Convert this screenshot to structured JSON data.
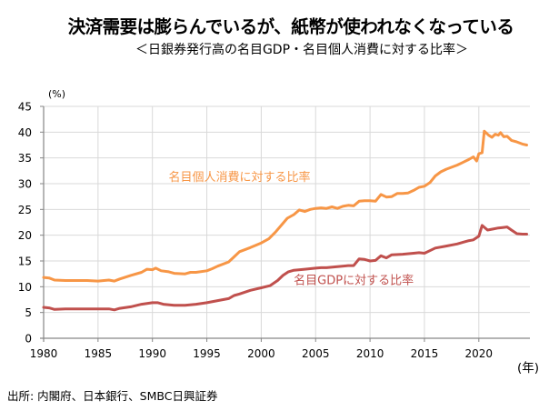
{
  "header": {
    "title": "決済需要は膨らんでいるが、紙幣が使われなくなっている",
    "subtitle": "＜日銀券発行高の名目GDP・名目個人消費に対する比率＞"
  },
  "source": "出所: 内閣府、日本銀行、SMBC日興証券",
  "chart_data": {
    "type": "line",
    "title": "決済需要は膨らんでいるが、紙幣が使われなくなっている",
    "subtitle": "＜日銀券発行高の名目GDP・名目個人消費に対する比率＞",
    "xlabel": "(年)",
    "ylabel": "(%)",
    "xlim": [
      1980,
      2024.5
    ],
    "ylim": [
      0,
      45
    ],
    "yticks": [
      0,
      5,
      10,
      15,
      20,
      25,
      30,
      35,
      40,
      45
    ],
    "xticks": [
      1980,
      1985,
      1990,
      1995,
      2000,
      2005,
      2010,
      2015,
      2020
    ],
    "grid": true,
    "legend": "inline-labels",
    "colors": {
      "consumption": "#f79646",
      "gdp": "#c0504d",
      "grid": "#d9d9d9",
      "axis": "#868686"
    },
    "series": [
      {
        "name": "名目個人消費に対する比率",
        "key": "consumption",
        "label_near": [
          1998,
          30.5
        ],
        "points": [
          [
            1980.0,
            11.8
          ],
          [
            1980.5,
            11.7
          ],
          [
            1981.0,
            11.3
          ],
          [
            1982.0,
            11.2
          ],
          [
            1983.0,
            11.2
          ],
          [
            1984.0,
            11.2
          ],
          [
            1985.0,
            11.1
          ],
          [
            1986.0,
            11.3
          ],
          [
            1986.5,
            11.1
          ],
          [
            1987.0,
            11.5
          ],
          [
            1988.0,
            12.2
          ],
          [
            1989.0,
            12.8
          ],
          [
            1989.5,
            13.4
          ],
          [
            1990.0,
            13.3
          ],
          [
            1990.3,
            13.6
          ],
          [
            1990.8,
            13.1
          ],
          [
            1991.5,
            12.9
          ],
          [
            1992.0,
            12.6
          ],
          [
            1993.0,
            12.5
          ],
          [
            1993.5,
            12.8
          ],
          [
            1994.0,
            12.8
          ],
          [
            1995.0,
            13.1
          ],
          [
            1995.5,
            13.5
          ],
          [
            1996.0,
            14.0
          ],
          [
            1997.0,
            14.8
          ],
          [
            1997.5,
            15.8
          ],
          [
            1998.0,
            16.8
          ],
          [
            1999.0,
            17.6
          ],
          [
            2000.0,
            18.5
          ],
          [
            2000.7,
            19.3
          ],
          [
            2001.3,
            20.6
          ],
          [
            2002.0,
            22.3
          ],
          [
            2002.4,
            23.3
          ],
          [
            2003.0,
            24.0
          ],
          [
            2003.5,
            24.9
          ],
          [
            2004.0,
            24.6
          ],
          [
            2004.5,
            25.0
          ],
          [
            2005.0,
            25.2
          ],
          [
            2005.5,
            25.3
          ],
          [
            2006.0,
            25.2
          ],
          [
            2006.5,
            25.5
          ],
          [
            2007.0,
            25.2
          ],
          [
            2007.5,
            25.6
          ],
          [
            2008.0,
            25.8
          ],
          [
            2008.5,
            25.7
          ],
          [
            2009.0,
            26.6
          ],
          [
            2009.5,
            26.7
          ],
          [
            2010.0,
            26.7
          ],
          [
            2010.5,
            26.6
          ],
          [
            2011.0,
            27.9
          ],
          [
            2011.5,
            27.4
          ],
          [
            2012.0,
            27.5
          ],
          [
            2012.5,
            28.1
          ],
          [
            2013.0,
            28.1
          ],
          [
            2013.5,
            28.2
          ],
          [
            2014.0,
            28.7
          ],
          [
            2014.5,
            29.3
          ],
          [
            2015.0,
            29.5
          ],
          [
            2015.5,
            30.2
          ],
          [
            2016.0,
            31.5
          ],
          [
            2016.5,
            32.3
          ],
          [
            2017.0,
            32.8
          ],
          [
            2017.5,
            33.2
          ],
          [
            2018.0,
            33.6
          ],
          [
            2018.5,
            34.1
          ],
          [
            2019.0,
            34.6
          ],
          [
            2019.5,
            35.2
          ],
          [
            2019.8,
            34.4
          ],
          [
            2020.0,
            35.8
          ],
          [
            2020.3,
            36.0
          ],
          [
            2020.5,
            40.2
          ],
          [
            2020.9,
            39.4
          ],
          [
            2021.2,
            39.0
          ],
          [
            2021.5,
            39.6
          ],
          [
            2021.8,
            39.4
          ],
          [
            2022.0,
            39.9
          ],
          [
            2022.3,
            39.1
          ],
          [
            2022.6,
            39.2
          ],
          [
            2023.0,
            38.4
          ],
          [
            2023.5,
            38.1
          ],
          [
            2024.0,
            37.7
          ],
          [
            2024.4,
            37.5
          ]
        ]
      },
      {
        "name": "名目GDPに対する比率",
        "key": "gdp",
        "label_near": [
          2008.5,
          10.5
        ],
        "points": [
          [
            1980.0,
            6.0
          ],
          [
            1980.5,
            5.9
          ],
          [
            1981.0,
            5.6
          ],
          [
            1982.0,
            5.7
          ],
          [
            1983.0,
            5.7
          ],
          [
            1984.0,
            5.7
          ],
          [
            1985.0,
            5.7
          ],
          [
            1986.0,
            5.7
          ],
          [
            1986.5,
            5.5
          ],
          [
            1987.0,
            5.8
          ],
          [
            1988.0,
            6.1
          ],
          [
            1989.0,
            6.6
          ],
          [
            1990.0,
            6.9
          ],
          [
            1990.5,
            6.9
          ],
          [
            1991.0,
            6.6
          ],
          [
            1992.0,
            6.4
          ],
          [
            1993.0,
            6.4
          ],
          [
            1994.0,
            6.6
          ],
          [
            1995.0,
            6.9
          ],
          [
            1996.0,
            7.3
          ],
          [
            1997.0,
            7.7
          ],
          [
            1997.5,
            8.3
          ],
          [
            1998.0,
            8.6
          ],
          [
            1999.0,
            9.3
          ],
          [
            2000.0,
            9.8
          ],
          [
            2000.8,
            10.2
          ],
          [
            2001.5,
            11.2
          ],
          [
            2002.0,
            12.2
          ],
          [
            2002.5,
            12.9
          ],
          [
            2003.0,
            13.2
          ],
          [
            2004.0,
            13.4
          ],
          [
            2005.0,
            13.6
          ],
          [
            2005.5,
            13.7
          ],
          [
            2006.0,
            13.7
          ],
          [
            2007.0,
            13.9
          ],
          [
            2008.0,
            14.1
          ],
          [
            2008.5,
            14.1
          ],
          [
            2009.0,
            15.4
          ],
          [
            2009.5,
            15.3
          ],
          [
            2010.0,
            15.0
          ],
          [
            2010.5,
            15.1
          ],
          [
            2011.0,
            16.0
          ],
          [
            2011.5,
            15.6
          ],
          [
            2012.0,
            16.2
          ],
          [
            2013.0,
            16.3
          ],
          [
            2014.0,
            16.5
          ],
          [
            2014.5,
            16.6
          ],
          [
            2015.0,
            16.5
          ],
          [
            2015.5,
            17.0
          ],
          [
            2016.0,
            17.5
          ],
          [
            2017.0,
            17.9
          ],
          [
            2018.0,
            18.3
          ],
          [
            2019.0,
            18.9
          ],
          [
            2019.5,
            19.1
          ],
          [
            2020.0,
            19.8
          ],
          [
            2020.3,
            21.9
          ],
          [
            2020.8,
            21.0
          ],
          [
            2021.3,
            21.2
          ],
          [
            2021.8,
            21.4
          ],
          [
            2022.2,
            21.5
          ],
          [
            2022.6,
            21.6
          ],
          [
            2023.0,
            21.0
          ],
          [
            2023.5,
            20.3
          ],
          [
            2024.0,
            20.2
          ],
          [
            2024.4,
            20.2
          ]
        ]
      }
    ]
  }
}
